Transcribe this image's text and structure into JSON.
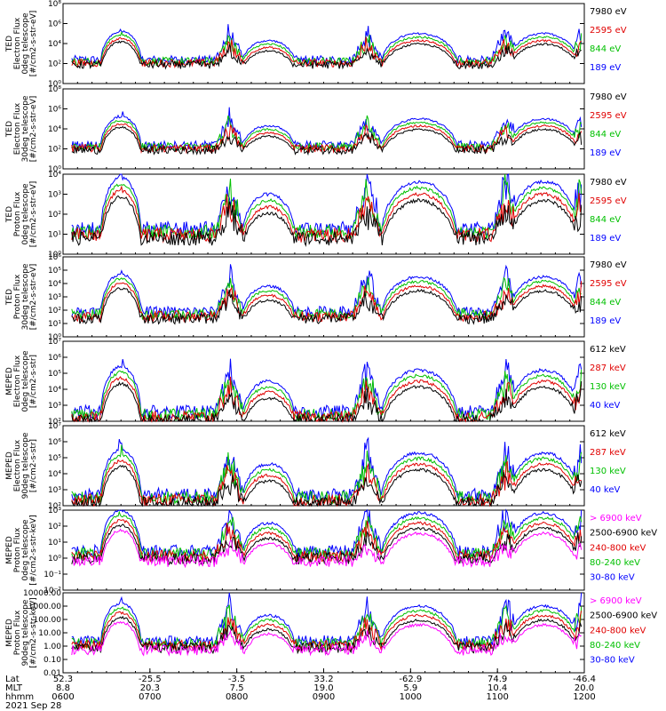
{
  "chart_data": {
    "type": "line",
    "panels": [
      {
        "ylabel": [
          "TED",
          "Electron Flux",
          "0deg telescope",
          "[#/cm2-s-str-eV]"
        ],
        "yticks": [
          "10⁰",
          "10²",
          "10⁴",
          "10⁶",
          "10⁸"
        ],
        "ylim_log": [
          0,
          8
        ],
        "baseline": 2,
        "legend": [
          {
            "label": "7980 eV",
            "color": "#000000"
          },
          {
            "label": "2595 eV",
            "color": "#e00000"
          },
          {
            "label": "844 eV",
            "color": "#00c000"
          },
          {
            "label": "189 eV",
            "color": "#0000ff"
          }
        ]
      },
      {
        "ylabel": [
          "TED",
          "Electron Flux",
          "30deg telescope",
          "[#/cm2-s-str-eV]"
        ],
        "yticks": [
          "10⁰",
          "10²",
          "10⁴",
          "10⁶",
          "10⁸"
        ],
        "ylim_log": [
          0,
          8
        ],
        "baseline": 2,
        "legend": [
          {
            "label": "7980 eV",
            "color": "#000000"
          },
          {
            "label": "2595 eV",
            "color": "#e00000"
          },
          {
            "label": "844 eV",
            "color": "#00c000"
          },
          {
            "label": "189 eV",
            "color": "#0000ff"
          }
        ]
      },
      {
        "ylabel": [
          "TED",
          "Proton Flux",
          "0deg telescope",
          "[#/cm2-s-str-eV]"
        ],
        "yticks": [
          "10⁰",
          "10¹",
          "10²",
          "10³",
          "10⁴"
        ],
        "ylim_log": [
          0,
          4.4
        ],
        "baseline": 1,
        "legend": [
          {
            "label": "7980 eV",
            "color": "#000000"
          },
          {
            "label": "2595 eV",
            "color": "#e00000"
          },
          {
            "label": "844 eV",
            "color": "#00c000"
          },
          {
            "label": "189 eV",
            "color": "#0000ff"
          }
        ]
      },
      {
        "ylabel": [
          "TED",
          "Proton Flux",
          "30deg telescope",
          "[#/cm2-s-str-eV]"
        ],
        "yticks": [
          "10⁰",
          "10¹",
          "10²",
          "10³",
          "10⁴",
          "10⁵",
          "10⁶"
        ],
        "ylim_log": [
          0,
          6
        ],
        "baseline": 1.5,
        "legend": [
          {
            "label": "7980 eV",
            "color": "#000000"
          },
          {
            "label": "2595 eV",
            "color": "#e00000"
          },
          {
            "label": "844 eV",
            "color": "#00c000"
          },
          {
            "label": "189 eV",
            "color": "#0000ff"
          }
        ]
      },
      {
        "ylabel": [
          "MEPED",
          "Electron Flux",
          "0deg telescope",
          "[#/cm2-s-str]"
        ],
        "yticks": [
          "10²",
          "10³",
          "10⁴",
          "10⁵",
          "10⁶",
          "10⁷"
        ],
        "ylim_log": [
          2,
          7
        ],
        "baseline": 2.2,
        "legend": [
          {
            "label": "612 keV",
            "color": "#000000"
          },
          {
            "label": "287 keV",
            "color": "#e00000"
          },
          {
            "label": "130 keV",
            "color": "#00c000"
          },
          {
            "label": "40 keV",
            "color": "#0000ff"
          }
        ]
      },
      {
        "ylabel": [
          "MEPED",
          "Electron Flux",
          "90deg telescope",
          "[#/cm2-s-str]"
        ],
        "yticks": [
          "10²",
          "10³",
          "10⁴",
          "10⁵",
          "10⁶",
          "10⁷"
        ],
        "ylim_log": [
          2,
          7
        ],
        "baseline": 2.3,
        "legend": [
          {
            "label": "612 keV",
            "color": "#000000"
          },
          {
            "label": "287 keV",
            "color": "#e00000"
          },
          {
            "label": "130 keV",
            "color": "#00c000"
          },
          {
            "label": "40 keV",
            "color": "#0000ff"
          }
        ]
      },
      {
        "ylabel": [
          "MEPED",
          "Proton Flux",
          "0deg telescope",
          "[#/cm2-s-str-keV]"
        ],
        "yticks": [
          "10⁻²",
          "10⁻¹",
          "10⁰",
          "10¹",
          "10²",
          "10³"
        ],
        "ylim_log": [
          -2,
          3.5
        ],
        "baseline": 0.3,
        "legend": [
          {
            "label": "> 6900 keV",
            "color": "#ff00ff"
          },
          {
            "label": "2500-6900 keV",
            "color": "#000000"
          },
          {
            "label": "240-800 keV",
            "color": "#e00000"
          },
          {
            "label": "80-240 keV",
            "color": "#00c000"
          },
          {
            "label": "30-80 keV",
            "color": "#0000ff"
          }
        ]
      },
      {
        "ylabel": [
          "MEPED",
          "Proton Flux",
          "90deg telescope",
          "[#/cm2-s-str-keV]"
        ],
        "yticks": [
          "0.01",
          "0.10",
          "1.00",
          "10.00",
          "100.00",
          "1000.00",
          "10000.00"
        ],
        "ylim_log": [
          -2,
          4
        ],
        "baseline": 0,
        "legend": [
          {
            "label": "> 6900 keV",
            "color": "#ff00ff"
          },
          {
            "label": "2500-6900 keV",
            "color": "#000000"
          },
          {
            "label": "240-800 keV",
            "color": "#e00000"
          },
          {
            "label": "80-240 keV",
            "color": "#00c000"
          },
          {
            "label": "30-80 keV",
            "color": "#0000ff"
          }
        ]
      }
    ],
    "x_axis": {
      "row_labels": [
        "Lat",
        "MLT",
        "hhmm"
      ],
      "lat": [
        "52.3",
        "-25.5",
        "-3.5",
        "33.2",
        "-62.9",
        "74.9",
        "-46.4"
      ],
      "mlt": [
        "8.8",
        "20.3",
        "7.5",
        "19.0",
        "5.9",
        "10.4",
        "20.0"
      ],
      "hhmm": [
        "0600",
        "0700",
        "0800",
        "0900",
        "1000",
        "1100",
        "1200"
      ],
      "date": "2021 Sep 28"
    },
    "events": [
      {
        "center_hhmm": "0640",
        "width_min": 14,
        "peak_log_above_base": 3.2
      },
      {
        "center_hhmm": "0822",
        "width_min": 18,
        "peak_log_above_base": 2.3
      },
      {
        "center_hhmm": "1006",
        "width_min": 26,
        "peak_log_above_base": 3.0
      },
      {
        "center_hhmm": "1132",
        "width_min": 24,
        "peak_log_above_base": 3.0
      }
    ]
  }
}
